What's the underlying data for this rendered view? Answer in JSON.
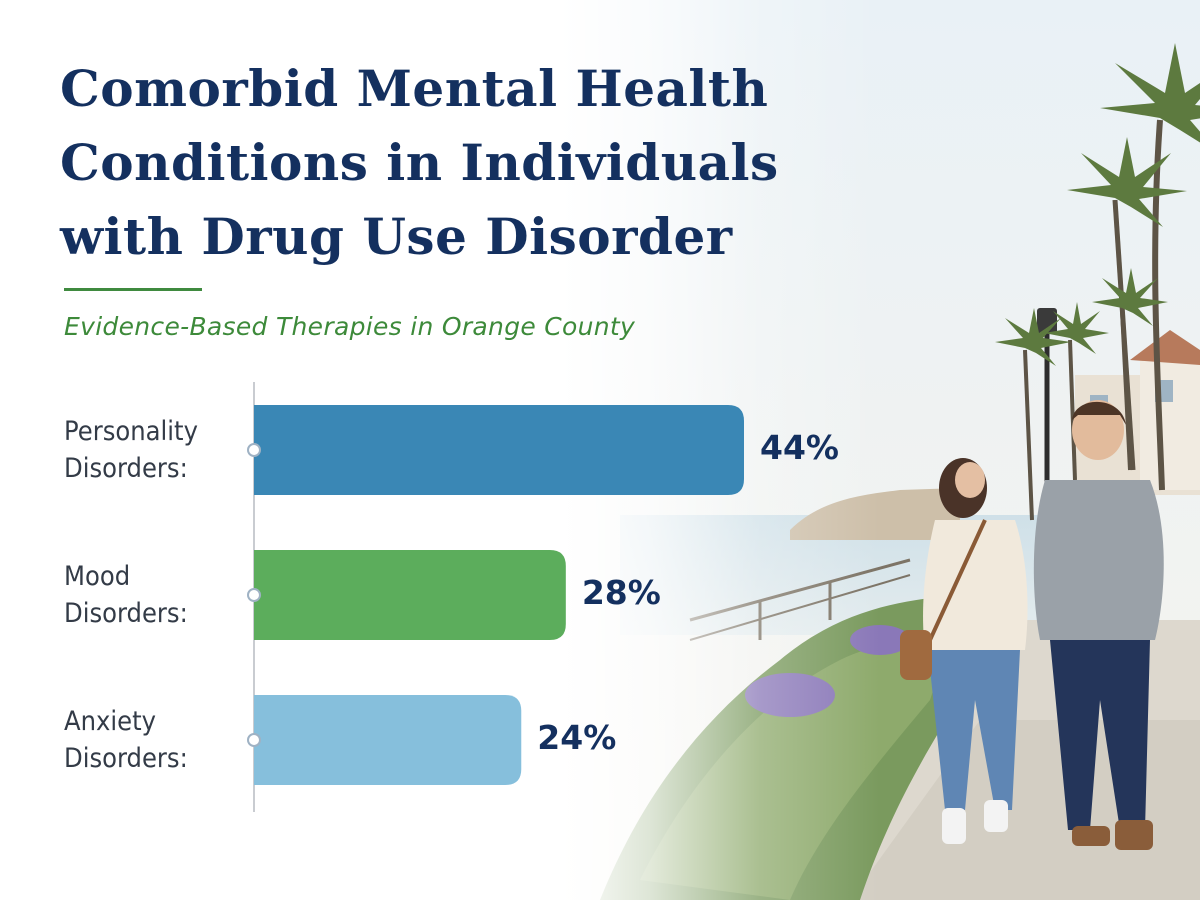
{
  "header": {
    "title_lines": [
      "Comorbid Mental Health",
      "Conditions in Individuals",
      "with Drug Use Disorder"
    ],
    "subtitle": "Evidence-Based Therapies in Orange County"
  },
  "chart_data": {
    "type": "bar",
    "orientation": "horizontal",
    "categories": [
      "Personality Disorders:",
      "Mood Disorders:",
      "Anxiety Disorders:"
    ],
    "category_lines": [
      [
        "Personality",
        "Disorders:"
      ],
      [
        "Mood",
        "Disorders:"
      ],
      [
        "Anxiety",
        "Disorders:"
      ]
    ],
    "values": [
      44,
      28,
      24
    ],
    "value_labels": [
      "44%",
      "28%",
      "24%"
    ],
    "colors": [
      "#3a87b5",
      "#5cad5c",
      "#86bfdc"
    ],
    "unit": "%",
    "xlim": [
      0,
      44
    ],
    "grid": false,
    "legend": "none"
  },
  "colors": {
    "title": "#14305f",
    "subtitle": "#3d8a3a",
    "category_text": "#333b47",
    "value_text": "#14305f"
  },
  "icons": [
    "palm-tree-icon",
    "street-lamp-icon",
    "walking-couple-icon"
  ]
}
